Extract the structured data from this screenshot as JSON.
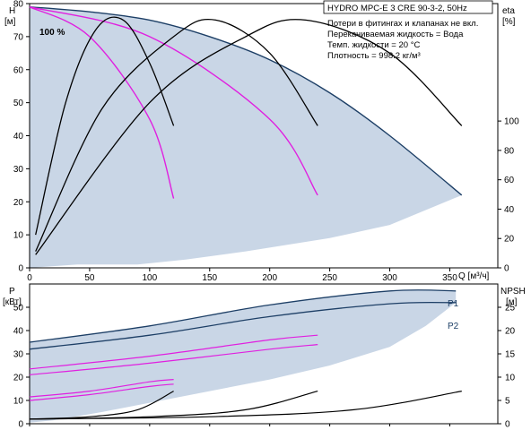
{
  "chart_data": [
    {
      "type": "line",
      "title": "HYDRO MPC-E 3 CRE 90-3-2, 50Hz",
      "info_lines": [
        "Потери в фитингах и клапанах не вкл.",
        "Перекачиваемая жидкость = Вода",
        "Темп. жидкости = 20 °C",
        "Плотность = 998.2 кг/м³"
      ],
      "annotation": "100 %",
      "xlabel": "Q [м³/ч]",
      "ylabel_left": [
        "H",
        "[м]"
      ],
      "ylabel_right": [
        "eta",
        "[%]"
      ],
      "xlim": [
        0,
        390
      ],
      "ylim_left": [
        0,
        80
      ],
      "ylim_right": [
        0,
        180
      ],
      "x_ticks": [
        "0",
        "50",
        "100",
        "150",
        "200",
        "250",
        "300",
        "350"
      ],
      "y_ticks_left": [
        "0",
        "10",
        "20",
        "30",
        "40",
        "50",
        "60",
        "70",
        "80"
      ],
      "y_ticks_right": [
        "0",
        "20",
        "40",
        "60",
        "80",
        "100"
      ],
      "colors": {
        "area": "#c9d6e6",
        "head": "#1d3f66",
        "pink": "#e020e0",
        "eta": "#000000"
      },
      "series": [
        {
          "role": "head-envelope",
          "color": "#1d3f66",
          "x": [
            0,
            50,
            100,
            150,
            200,
            250,
            300,
            360
          ],
          "y": [
            79,
            77.5,
            75,
            70,
            63,
            53,
            40,
            22
          ]
        },
        {
          "role": "head-1-pump",
          "color": "#e020e0",
          "x": [
            0,
            50,
            100,
            120
          ],
          "y": [
            79,
            70,
            45,
            21
          ]
        },
        {
          "role": "head-2-pumps",
          "color": "#e020e0",
          "x": [
            0,
            100,
            200,
            240
          ],
          "y": [
            79,
            70,
            45,
            22
          ]
        },
        {
          "role": "eta-1-pump",
          "color": "#000000",
          "x": [
            5,
            30,
            55,
            78,
            100,
            120
          ],
          "y": [
            10,
            50,
            72,
            75,
            62,
            43
          ]
        },
        {
          "role": "eta-2-pumps",
          "color": "#000000",
          "x": [
            5,
            60,
            120,
            155,
            200,
            240
          ],
          "y": [
            5,
            48,
            70,
            75,
            65,
            43
          ]
        },
        {
          "role": "eta-3-pumps",
          "color": "#000000",
          "x": [
            5,
            100,
            180,
            230,
            300,
            360
          ],
          "y": [
            4,
            50,
            70,
            75,
            65,
            43
          ]
        }
      ]
    },
    {
      "type": "line",
      "ylabel_left": [
        "P",
        "[кВт]"
      ],
      "ylabel_right": [
        "NPSH",
        "[м]"
      ],
      "xlim": [
        0,
        390
      ],
      "ylim_left": [
        0,
        60
      ],
      "ylim_right": [
        0,
        30
      ],
      "y_ticks_left": [
        "0",
        "10",
        "20",
        "30",
        "40",
        "50"
      ],
      "y_ticks_right": [
        "0",
        "5",
        "10",
        "15",
        "20",
        "25"
      ],
      "series_labels": [
        "P1",
        "P2"
      ],
      "series": [
        {
          "role": "P1-envelope",
          "color": "#1d3f66",
          "x": [
            0,
            100,
            200,
            300,
            355
          ],
          "y": [
            35,
            42,
            51,
            57,
            57
          ]
        },
        {
          "role": "P2-envelope",
          "color": "#1d3f66",
          "x": [
            0,
            100,
            200,
            300,
            355
          ],
          "y": [
            32,
            38,
            46,
            51.5,
            52
          ]
        },
        {
          "role": "P1-2-pumps",
          "color": "#e020e0",
          "x": [
            0,
            100,
            200,
            240
          ],
          "y": [
            23.5,
            29,
            36,
            38
          ]
        },
        {
          "role": "P2-2-pumps",
          "color": "#e020e0",
          "x": [
            0,
            100,
            200,
            240
          ],
          "y": [
            21,
            26,
            32,
            34
          ]
        },
        {
          "role": "P1-1-pump",
          "color": "#e020e0",
          "x": [
            0,
            50,
            100,
            120
          ],
          "y": [
            11.5,
            14,
            18,
            19
          ]
        },
        {
          "role": "P2-1-pump",
          "color": "#e020e0",
          "x": [
            0,
            50,
            100,
            120
          ],
          "y": [
            10,
            12.5,
            16,
            17
          ]
        },
        {
          "role": "NPSH-1-pump",
          "color": "#000000",
          "x": [
            0,
            50,
            90,
            120
          ],
          "y": [
            1,
            1.5,
            3,
            7
          ]
        },
        {
          "role": "NPSH-2-pumps",
          "color": "#000000",
          "x": [
            0,
            100,
            180,
            240
          ],
          "y": [
            1,
            1.5,
            3,
            7
          ]
        },
        {
          "role": "NPSH-3-pumps",
          "color": "#000000",
          "x": [
            0,
            150,
            270,
            360
          ],
          "y": [
            1,
            1.5,
            3,
            7
          ]
        }
      ]
    }
  ]
}
